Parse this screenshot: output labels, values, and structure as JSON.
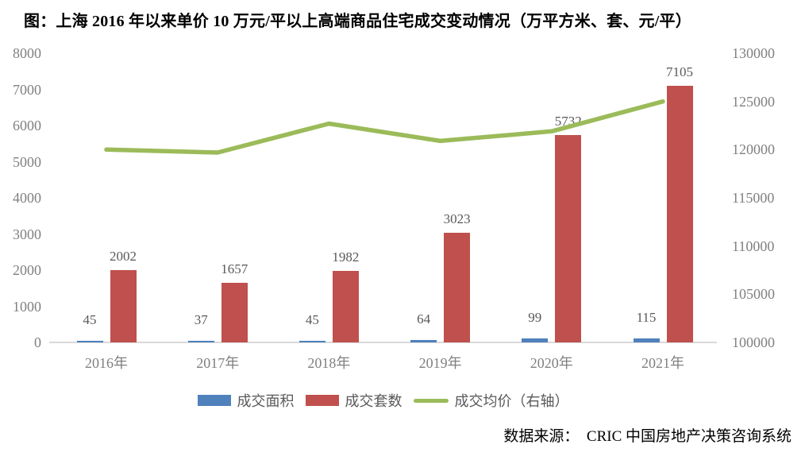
{
  "title": "图：上海 2016 年以来单价 10 万元/平以上高端商品住宅成交变动情况（万平方米、套、元/平）",
  "source": "数据来源：　CRIC 中国房地产决策咨询系统",
  "colors": {
    "bar_area": "#4F81BD",
    "bar_units": "#C0504D",
    "line_price": "#9BBB59",
    "axis_text": "#808080",
    "data_label_text": "#595959",
    "axis_line": "#D9D9D9",
    "title_text": "#000000"
  },
  "chart_data": {
    "type": "bar",
    "subtype": "combo-bar-line-dual-axis",
    "categories": [
      "2016年",
      "2017年",
      "2018年",
      "2019年",
      "2020年",
      "2021年"
    ],
    "series": [
      {
        "name": "成交面积",
        "kind": "bar",
        "axis": "left",
        "color": "#4F81BD",
        "values": [
          45,
          37,
          45,
          64,
          99,
          115
        ],
        "data_labels_shown": true
      },
      {
        "name": "成交套数",
        "kind": "bar",
        "axis": "left",
        "color": "#C0504D",
        "values": [
          2002,
          1657,
          1982,
          3023,
          5732,
          7105
        ],
        "data_labels_shown": true
      },
      {
        "name": "成交均价（右轴）",
        "kind": "line",
        "axis": "right",
        "color": "#9BBB59",
        "values": [
          120000,
          119700,
          122700,
          120900,
          121900,
          125000
        ],
        "values_estimated": true,
        "data_labels_shown": false
      }
    ],
    "left_axis": {
      "min": 0,
      "max": 8000,
      "step": 1000,
      "tick_labels": [
        "0",
        "1000",
        "2000",
        "3000",
        "4000",
        "5000",
        "6000",
        "7000",
        "8000"
      ]
    },
    "right_axis": {
      "min": 100000,
      "max": 130000,
      "step": 5000,
      "tick_labels": [
        "100000",
        "105000",
        "110000",
        "115000",
        "120000",
        "125000",
        "130000"
      ]
    },
    "grid": false,
    "legend_position": "bottom"
  }
}
